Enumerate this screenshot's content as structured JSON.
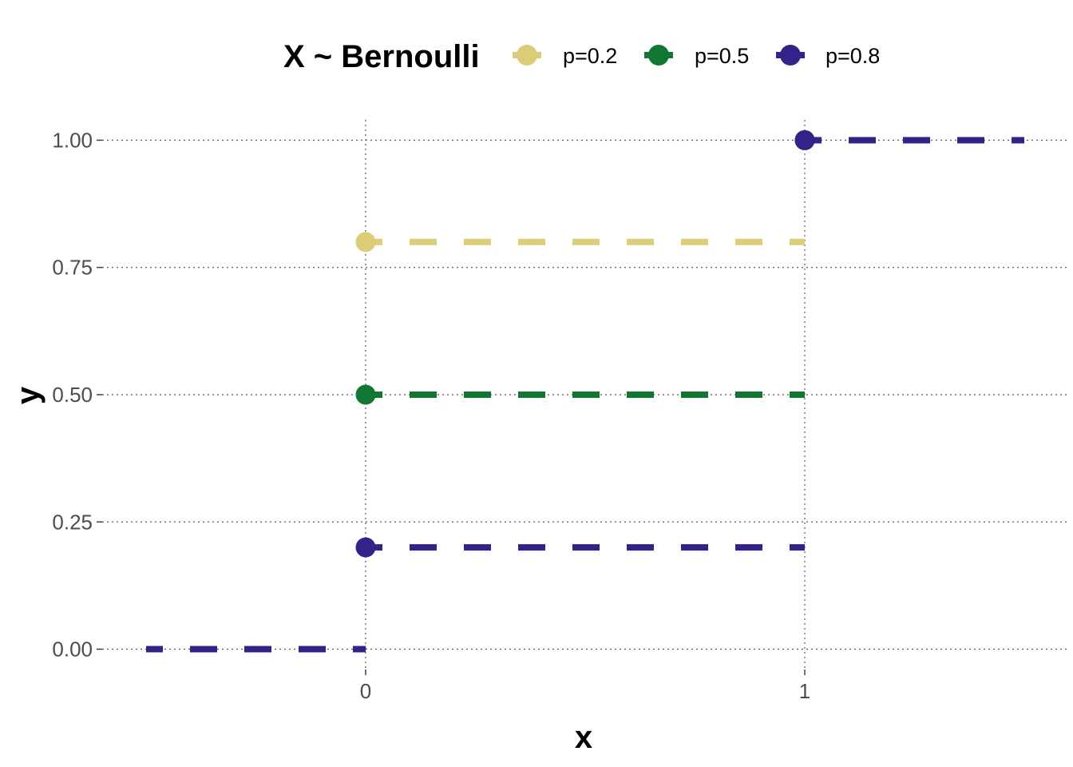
{
  "chart_data": {
    "type": "line",
    "title": "",
    "xlabel": "x",
    "ylabel": "y",
    "xlim": [
      -0.6,
      1.6
    ],
    "ylim": [
      -0.04,
      1.04
    ],
    "x_ticks": [
      0,
      1
    ],
    "x_tick_labels": [
      "0",
      "1"
    ],
    "y_ticks": [
      0,
      0.25,
      0.5,
      0.75,
      1
    ],
    "y_tick_labels": [
      "0.00",
      "0.25",
      "0.50",
      "0.75",
      "1.00"
    ],
    "grid": true,
    "legend": {
      "title": "X ~ Bernoulli",
      "position": "top"
    },
    "series": [
      {
        "name": "p=0.2",
        "color": "#DDCC77",
        "segments": [
          {
            "x": [
              -0.5,
              0
            ],
            "y": [
              0,
              0
            ]
          },
          {
            "x": [
              0,
              1
            ],
            "y": [
              0.8,
              0.8
            ]
          },
          {
            "x": [
              1,
              1.5
            ],
            "y": [
              1,
              1
            ]
          }
        ],
        "points": [
          {
            "x": 0,
            "y": 0.8
          },
          {
            "x": 1,
            "y": 1
          }
        ]
      },
      {
        "name": "p=0.5",
        "color": "#117733",
        "segments": [
          {
            "x": [
              -0.5,
              0
            ],
            "y": [
              0,
              0
            ]
          },
          {
            "x": [
              0,
              1
            ],
            "y": [
              0.5,
              0.5
            ]
          },
          {
            "x": [
              1,
              1.5
            ],
            "y": [
              1,
              1
            ]
          }
        ],
        "points": [
          {
            "x": 0,
            "y": 0.5
          },
          {
            "x": 1,
            "y": 1
          }
        ]
      },
      {
        "name": "p=0.8",
        "color": "#332288",
        "segments": [
          {
            "x": [
              -0.5,
              0
            ],
            "y": [
              0,
              0
            ]
          },
          {
            "x": [
              0,
              1
            ],
            "y": [
              0.2,
              0.2
            ]
          },
          {
            "x": [
              1,
              1.5
            ],
            "y": [
              1,
              1
            ]
          }
        ],
        "points": [
          {
            "x": 0,
            "y": 0.2
          },
          {
            "x": 1,
            "y": 1
          }
        ]
      }
    ]
  }
}
